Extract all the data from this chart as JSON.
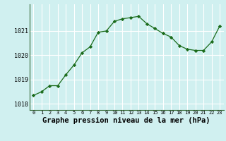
{
  "x": [
    0,
    1,
    2,
    3,
    4,
    5,
    6,
    7,
    8,
    9,
    10,
    11,
    12,
    13,
    14,
    15,
    16,
    17,
    18,
    19,
    20,
    21,
    22,
    23
  ],
  "y": [
    1018.35,
    1018.5,
    1018.75,
    1018.75,
    1019.2,
    1019.6,
    1020.1,
    1020.35,
    1020.95,
    1021.0,
    1021.4,
    1021.5,
    1021.55,
    1021.6,
    1021.3,
    1021.1,
    1020.9,
    1020.75,
    1020.4,
    1020.25,
    1020.2,
    1020.2,
    1020.55,
    1021.2
  ],
  "line_color": "#1a6b1a",
  "marker": "D",
  "marker_size": 2.2,
  "bg_color": "#d0f0f0",
  "grid_color": "#ffffff",
  "xlabel": "Graphe pression niveau de la mer (hPa)",
  "xlabel_fontsize": 7.5,
  "ylabel_ticks": [
    1018,
    1019,
    1020,
    1021
  ],
  "ylim": [
    1017.75,
    1022.1
  ],
  "xlim": [
    -0.5,
    23.5
  ],
  "xticks": [
    0,
    1,
    2,
    3,
    4,
    5,
    6,
    7,
    8,
    9,
    10,
    11,
    12,
    13,
    14,
    15,
    16,
    17,
    18,
    19,
    20,
    21,
    22,
    23
  ]
}
